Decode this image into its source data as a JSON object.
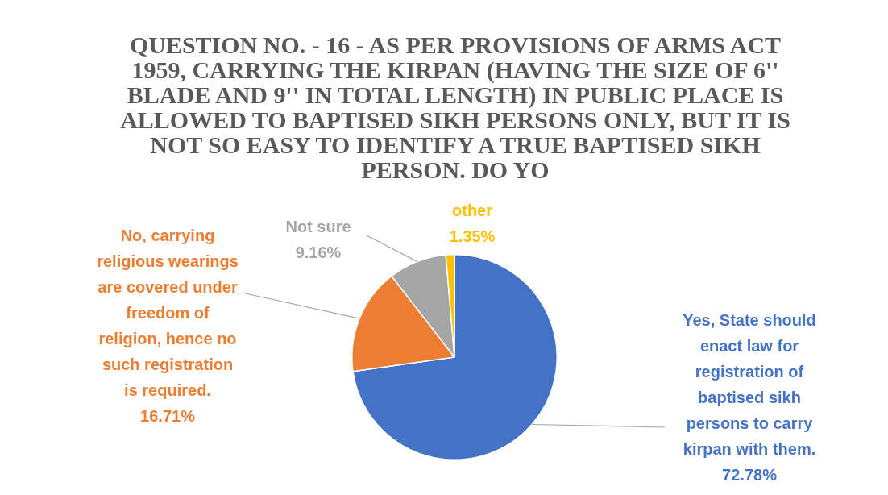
{
  "chart_data": {
    "type": "pie",
    "title": "QUESTION NO. - 16 - AS PER PROVISIONS OF ARMS ACT 1959, CARRYING THE KIRPAN (HAVING THE SIZE OF 6'' BLADE AND 9'' IN TOTAL LENGTH) IN PUBLIC PLACE IS ALLOWED TO BAPTISED SIKH PERSONS ONLY, BUT IT IS NOT SO EASY TO IDENTIFY A TRUE BAPTISED SIKH PERSON. DO YO",
    "categories": [
      "Yes, State should enact law for registration of baptised sikh persons to carry kirpan with them.",
      "No, carrying religious wearings are covered under freedom of religion, hence no such registration is required.",
      "Not sure",
      "other"
    ],
    "values": [
      72.78,
      16.71,
      9.16,
      1.35
    ],
    "colors": [
      "#4472c4",
      "#ed7d31",
      "#a5a5a5",
      "#ffc000"
    ],
    "value_labels": [
      "72.78%",
      "16.71%",
      "9.16%",
      "1.35%"
    ],
    "legend": false
  }
}
